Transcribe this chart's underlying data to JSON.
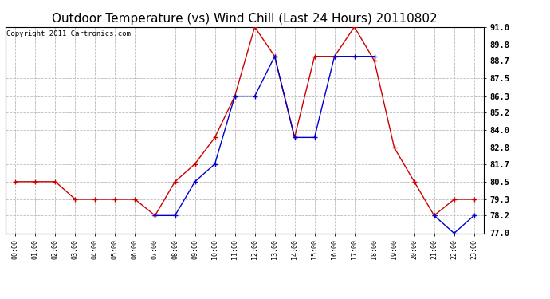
{
  "title": "Outdoor Temperature (vs) Wind Chill (Last 24 Hours) 20110802",
  "copyright_text": "Copyright 2011 Cartronics.com",
  "x_labels": [
    "00:00",
    "01:00",
    "02:00",
    "03:00",
    "04:00",
    "05:00",
    "06:00",
    "07:00",
    "08:00",
    "09:00",
    "10:00",
    "11:00",
    "12:00",
    "13:00",
    "14:00",
    "15:00",
    "16:00",
    "17:00",
    "18:00",
    "19:00",
    "20:00",
    "21:00",
    "22:00",
    "23:00"
  ],
  "outdoor_temp": [
    80.5,
    80.5,
    80.5,
    79.3,
    79.3,
    79.3,
    79.3,
    78.2,
    80.5,
    81.7,
    83.5,
    86.3,
    91.0,
    89.0,
    83.5,
    89.0,
    89.0,
    91.0,
    88.7,
    82.8,
    80.5,
    78.2,
    79.3,
    79.3
  ],
  "wind_chill": [
    null,
    null,
    null,
    null,
    null,
    null,
    null,
    78.2,
    78.2,
    80.5,
    81.7,
    86.3,
    86.3,
    89.0,
    83.5,
    83.5,
    89.0,
    89.0,
    89.0,
    null,
    null,
    78.2,
    77.0,
    78.2
  ],
  "ylim": [
    77.0,
    91.0
  ],
  "yticks": [
    77.0,
    78.2,
    79.3,
    80.5,
    81.7,
    82.8,
    84.0,
    85.2,
    86.3,
    87.5,
    88.7,
    89.8,
    91.0
  ],
  "temp_color": "#cc0000",
  "wind_color": "#0000cc",
  "bg_color": "#ffffff",
  "grid_color": "#bbbbbb",
  "title_fontsize": 11,
  "copyright_fontsize": 6.5
}
